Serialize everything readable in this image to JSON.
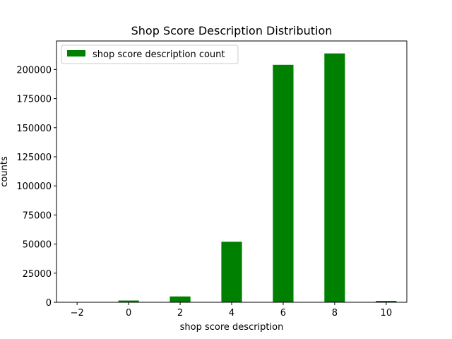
{
  "chart_data": {
    "type": "bar",
    "title": "Shop Score Description Distribution",
    "xlabel": "shop score description",
    "ylabel": "counts",
    "x": [
      0,
      2,
      4,
      6,
      8,
      10
    ],
    "series": [
      {
        "name": "shop score description count",
        "values": [
          1500,
          5000,
          52000,
          204000,
          213800,
          1200
        ],
        "color": "#008000"
      }
    ],
    "xlim": [
      -2.8,
      10.8
    ],
    "ylim": [
      0,
      224500
    ],
    "xticks": [
      -2,
      0,
      2,
      4,
      6,
      8,
      10
    ],
    "xtick_labels": [
      "−2",
      "0",
      "2",
      "4",
      "6",
      "8",
      "10"
    ],
    "yticks": [
      0,
      25000,
      50000,
      75000,
      100000,
      125000,
      150000,
      175000,
      200000
    ],
    "ytick_labels": [
      "0",
      "25000",
      "50000",
      "75000",
      "100000",
      "125000",
      "150000",
      "175000",
      "200000"
    ],
    "bar_width": 0.8,
    "grid": false,
    "legend": "top-left"
  }
}
